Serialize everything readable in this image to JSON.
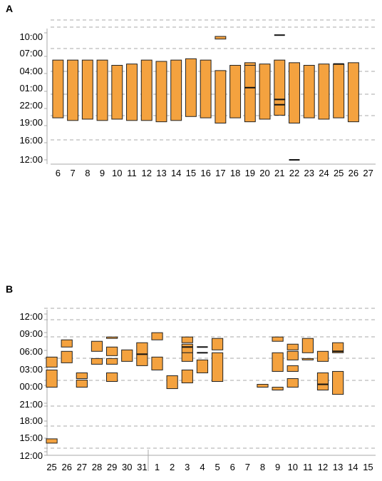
{
  "panels": [
    {
      "label": "A",
      "y_ticks": [
        "10:00",
        "07:00",
        "04:00",
        "01:00",
        "22:00",
        "19:00",
        "16:00",
        "12:00"
      ],
      "x_ticks": [
        "6",
        "7",
        "8",
        "9",
        "10",
        "11",
        "12",
        "13",
        "14",
        "15",
        "16",
        "17",
        "18",
        "19",
        "20",
        "21",
        "22",
        "23",
        "24",
        "25",
        "26",
        "27"
      ]
    },
    {
      "label": "B",
      "y_ticks": [
        "12:00",
        "09:00",
        "06:00",
        "03:00",
        "00:00",
        "21:00",
        "18:00",
        "15:00",
        "12:00"
      ],
      "x_ticks": [
        "25",
        "26",
        "27",
        "28",
        "29",
        "30",
        "31",
        "1",
        "2",
        "3",
        "4",
        "5",
        "6",
        "7",
        "8",
        "9",
        "10",
        "11",
        "12",
        "13",
        "14",
        "15"
      ]
    }
  ],
  "chart_data": [
    {
      "type": "bar",
      "subtype": "floating-range",
      "panel": "A",
      "y_axis_ticks": [
        "10:00",
        "07:00",
        "04:00",
        "01:00",
        "22:00",
        "19:00",
        "16:00",
        "12:00"
      ],
      "categories": [
        "6",
        "7",
        "8",
        "9",
        "10",
        "11",
        "12",
        "13",
        "14",
        "15",
        "16",
        "17",
        "18",
        "19",
        "20",
        "21",
        "22",
        "23",
        "24",
        "25",
        "26",
        "27"
      ],
      "bars": [
        {
          "day": "6",
          "start": "20:00",
          "end": "07:00"
        },
        {
          "day": "7",
          "start": "19:30",
          "end": "07:00"
        },
        {
          "day": "8",
          "start": "19:45",
          "end": "07:00"
        },
        {
          "day": "9",
          "start": "19:30",
          "end": "07:00"
        },
        {
          "day": "10",
          "start": "19:45",
          "end": "06:00"
        },
        {
          "day": "11",
          "start": "19:30",
          "end": "06:15"
        },
        {
          "day": "12",
          "start": "19:30",
          "end": "07:00"
        },
        {
          "day": "13",
          "start": "19:15",
          "end": "06:45"
        },
        {
          "day": "14",
          "start": "19:30",
          "end": "07:00"
        },
        {
          "day": "15",
          "start": "20:15",
          "end": "07:15"
        },
        {
          "day": "16",
          "start": "20:00",
          "end": "07:00"
        },
        {
          "day": "17",
          "start": "19:00",
          "end": "05:00"
        },
        {
          "day": "17",
          "start": "11:00",
          "end": "11:30"
        },
        {
          "day": "18",
          "start": "20:00",
          "end": "06:00"
        },
        {
          "day": "19",
          "start": "19:15",
          "end": "06:00"
        },
        {
          "day": "19",
          "start": "06:00",
          "end": "06:30"
        },
        {
          "day": "20",
          "start": "19:45",
          "end": "06:15"
        },
        {
          "day": "21",
          "start": "23:30",
          "end": "07:00"
        },
        {
          "day": "21",
          "start": "20:30",
          "end": "23:30"
        },
        {
          "day": "22",
          "start": "19:00",
          "end": "06:30"
        },
        {
          "day": "23",
          "start": "20:00",
          "end": "06:00"
        },
        {
          "day": "24",
          "start": "19:45",
          "end": "06:15"
        },
        {
          "day": "25",
          "start": "20:00",
          "end": "06:15"
        },
        {
          "day": "26",
          "start": "19:15",
          "end": "06:30"
        }
      ],
      "marks": [
        {
          "day": "19",
          "time": "01:45"
        },
        {
          "day": "21",
          "time": "11:45"
        },
        {
          "day": "21",
          "time": "23:30"
        },
        {
          "day": "21",
          "time": "22:30"
        },
        {
          "day": "22",
          "time": "12:00"
        },
        {
          "day": "25",
          "time": "06:15"
        }
      ]
    },
    {
      "type": "bar",
      "subtype": "floating-range",
      "panel": "B",
      "y_axis_ticks": [
        "12:00",
        "09:00",
        "06:00",
        "03:00",
        "00:00",
        "21:00",
        "18:00",
        "15:00",
        "12:00"
      ],
      "categories": [
        "25",
        "26",
        "27",
        "28",
        "29",
        "30",
        "31",
        "1",
        "2",
        "3",
        "4",
        "5",
        "6",
        "7",
        "8",
        "9",
        "10",
        "11",
        "12",
        "13",
        "14",
        "15"
      ],
      "bars": [
        {
          "day": "25",
          "start": "02:45",
          "end": "04:30"
        },
        {
          "day": "25",
          "start": "23:15",
          "end": "02:15"
        },
        {
          "day": "25",
          "start": "13:30",
          "end": "14:15"
        },
        {
          "day": "26",
          "start": "06:15",
          "end": "07:30"
        },
        {
          "day": "26",
          "start": "03:30",
          "end": "05:30"
        },
        {
          "day": "27",
          "start": "00:45",
          "end": "01:45"
        },
        {
          "day": "27",
          "start": "23:15",
          "end": "00:30"
        },
        {
          "day": "28",
          "start": "05:30",
          "end": "07:15"
        },
        {
          "day": "28",
          "start": "03:15",
          "end": "04:15"
        },
        {
          "day": "29",
          "start": "07:45",
          "end": "08:00"
        },
        {
          "day": "29",
          "start": "04:45",
          "end": "06:15"
        },
        {
          "day": "29",
          "start": "03:15",
          "end": "04:15"
        },
        {
          "day": "29",
          "start": "00:15",
          "end": "01:45"
        },
        {
          "day": "30",
          "start": "03:45",
          "end": "05:45"
        },
        {
          "day": "31",
          "start": "05:00",
          "end": "07:00"
        },
        {
          "day": "31",
          "start": "03:00",
          "end": "05:00"
        },
        {
          "day": "1",
          "start": "07:30",
          "end": "08:45"
        },
        {
          "day": "1",
          "start": "02:15",
          "end": "04:30"
        },
        {
          "day": "2",
          "start": "23:00",
          "end": "01:15"
        },
        {
          "day": "3",
          "start": "07:00",
          "end": "08:00"
        },
        {
          "day": "3",
          "start": "05:15",
          "end": "06:45"
        },
        {
          "day": "3",
          "start": "03:45",
          "end": "05:15"
        },
        {
          "day": "3",
          "start": "00:00",
          "end": "02:15"
        },
        {
          "day": "4",
          "start": "01:45",
          "end": "04:00"
        },
        {
          "day": "5",
          "start": "05:45",
          "end": "07:45"
        },
        {
          "day": "5",
          "start": "00:15",
          "end": "05:15"
        },
        {
          "day": "8",
          "start": "23:15",
          "end": "23:45"
        },
        {
          "day": "9",
          "start": "07:15",
          "end": "08:00"
        },
        {
          "day": "9",
          "start": "02:00",
          "end": "05:15"
        },
        {
          "day": "9",
          "start": "22:45",
          "end": "23:15"
        },
        {
          "day": "10",
          "start": "05:45",
          "end": "06:45"
        },
        {
          "day": "10",
          "start": "04:00",
          "end": "05:30"
        },
        {
          "day": "10",
          "start": "02:00",
          "end": "03:00"
        },
        {
          "day": "10",
          "start": "23:15",
          "end": "00:45"
        },
        {
          "day": "11",
          "start": "05:15",
          "end": "07:45"
        },
        {
          "day": "11",
          "start": "04:00",
          "end": "04:15"
        },
        {
          "day": "12",
          "start": "03:45",
          "end": "05:30"
        },
        {
          "day": "12",
          "start": "22:45",
          "end": "01:45"
        },
        {
          "day": "13",
          "start": "05:15",
          "end": "07:00"
        },
        {
          "day": "13",
          "start": "22:00",
          "end": "02:00"
        }
      ],
      "marks": [
        {
          "day": "4",
          "time": "06:15"
        },
        {
          "day": "4",
          "time": "05:15"
        },
        {
          "day": "3",
          "time": "06:15"
        },
        {
          "day": "12",
          "time": "23:45"
        },
        {
          "day": "13",
          "time": "05:30"
        },
        {
          "day": "31",
          "time": "05:00"
        }
      ]
    }
  ]
}
